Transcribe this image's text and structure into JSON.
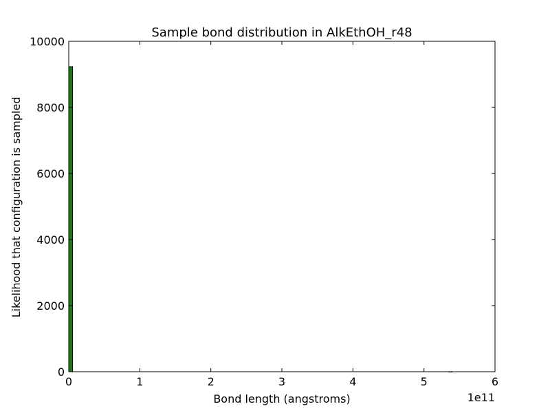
{
  "chart_data": {
    "type": "bar",
    "title": "Sample bond distribution in AlkEthOH_r48",
    "xlabel": "Bond length (angstroms)",
    "ylabel": "Likelihood that configuration is sampled",
    "x_offset_text": "1e11",
    "xlim": [
      0,
      6
    ],
    "ylim": [
      0,
      10000
    ],
    "x_ticks": [
      "0",
      "1",
      "2",
      "3",
      "4",
      "5",
      "6"
    ],
    "y_ticks": [
      "0",
      "2000",
      "4000",
      "6000",
      "8000",
      "10000"
    ],
    "bin_width": 0.054,
    "bars": [
      {
        "x_start": 0.0,
        "value": 9230
      },
      {
        "x_start": 5.346,
        "value": 1
      }
    ],
    "bar_color": "#1f7a1f"
  }
}
